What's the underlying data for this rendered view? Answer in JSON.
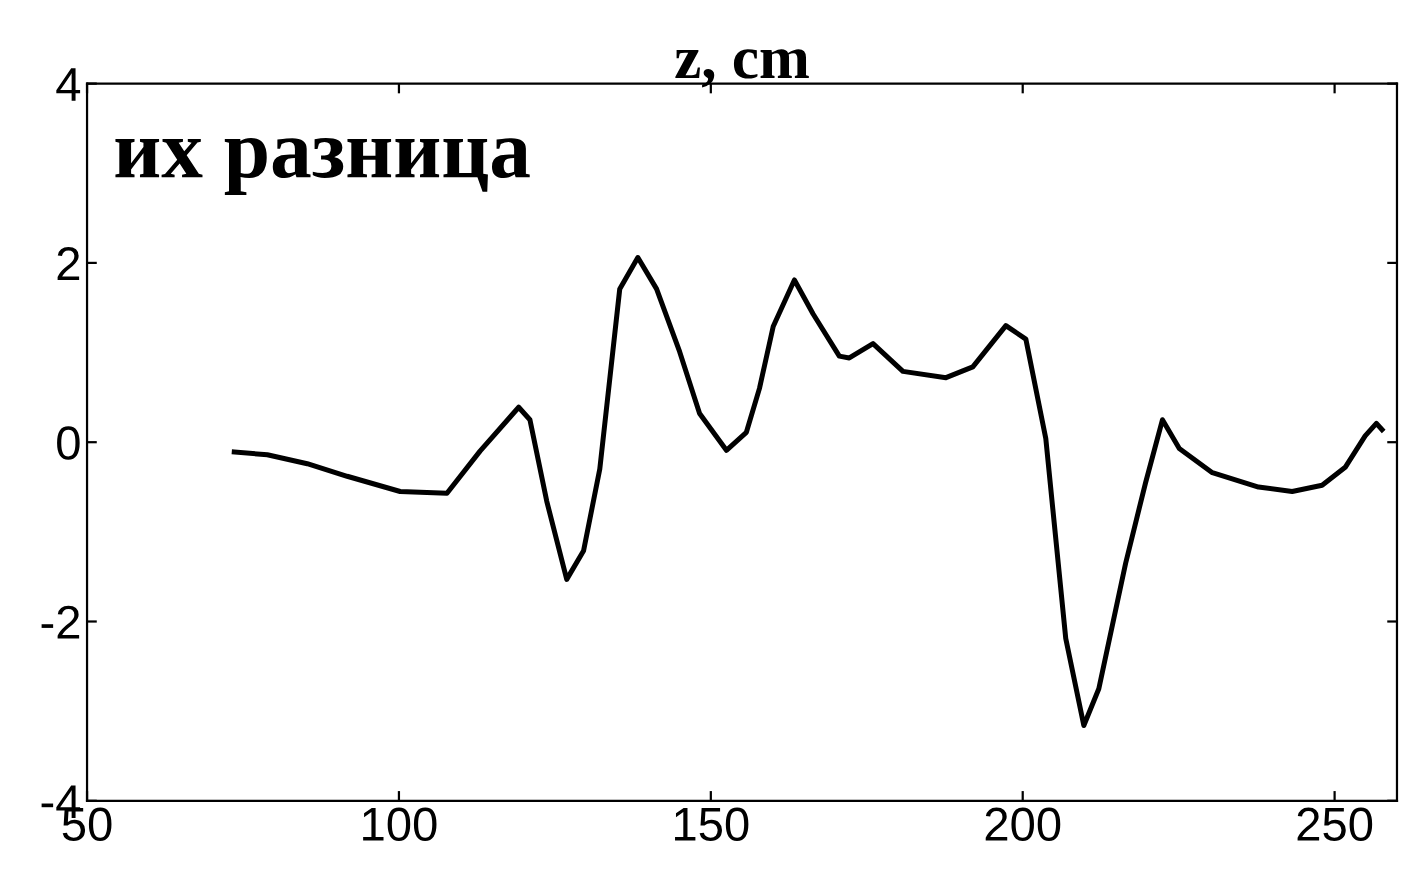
{
  "chart_data": {
    "type": "line",
    "title": "z, cm",
    "annotations": [
      "их разница"
    ],
    "x": [
      73.6,
      78.9,
      85.3,
      91.7,
      100.2,
      107.7,
      113,
      119.2,
      121,
      123.7,
      126.9,
      129.6,
      132.2,
      135.4,
      138.3,
      141.3,
      145,
      148.2,
      152.5,
      155.7,
      157.8,
      160,
      163.4,
      166.4,
      170.6,
      172.2,
      176,
      180.8,
      187.7,
      192,
      197.3,
      200.5,
      203.7,
      206.9,
      209.8,
      212.2,
      216.5,
      219.7,
      222.4,
      225.1,
      230.4,
      237.8,
      243.2,
      248,
      251.7,
      254.9,
      256.7,
      257.6
    ],
    "series": [
      {
        "color": "#000000",
        "values": [
          -0.11,
          -0.14,
          -0.24,
          -0.38,
          -0.55,
          -0.57,
          -0.1,
          0.39,
          0.25,
          -0.66,
          -1.53,
          -1.21,
          -0.3,
          1.71,
          2.06,
          1.71,
          1.01,
          0.32,
          -0.09,
          0.11,
          0.6,
          1.29,
          1.81,
          1.43,
          0.96,
          0.94,
          1.1,
          0.79,
          0.72,
          0.84,
          1.3,
          1.15,
          0.04,
          -2.19,
          -3.16,
          -2.75,
          -1.35,
          -0.45,
          0.25,
          -0.07,
          -0.34,
          -0.5,
          -0.55,
          -0.48,
          -0.28,
          0.07,
          0.21,
          0.14
        ]
      }
    ],
    "xlim": [
      50,
      260
    ],
    "xticks": [
      50,
      100,
      150,
      200,
      250
    ],
    "ylim": [
      -4,
      4
    ],
    "yticks": [
      -4,
      -2,
      0,
      2,
      4
    ],
    "grid": false,
    "legend": false,
    "marker": "none",
    "line_style": "solid"
  }
}
